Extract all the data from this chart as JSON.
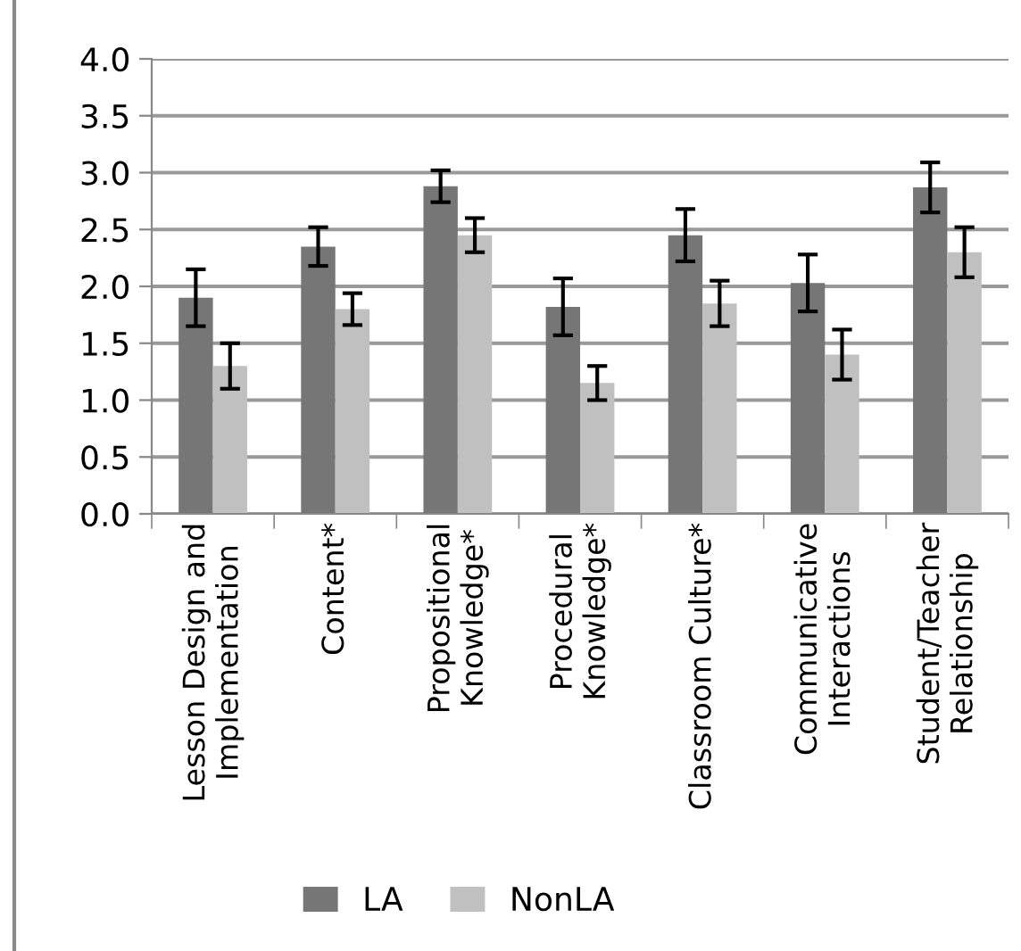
{
  "chart_data": {
    "type": "bar",
    "categories": [
      "Lesson Design and\nImplementation",
      "Content*",
      "Propositional\nKnowledge*",
      "Procedural\nKnowledge*",
      "Classroom Culture*",
      "Communicative\nInteractions",
      "Student/Teacher\nRelationship"
    ],
    "series": [
      {
        "name": "LA",
        "color": "#767676",
        "values": [
          1.9,
          2.35,
          2.88,
          1.82,
          2.45,
          2.03,
          2.87
        ],
        "errors": [
          0.25,
          0.17,
          0.14,
          0.25,
          0.23,
          0.25,
          0.22
        ]
      },
      {
        "name": "NonLA",
        "color": "#c0c0c0",
        "values": [
          1.3,
          1.8,
          2.45,
          1.15,
          1.85,
          1.4,
          2.3
        ],
        "errors": [
          0.2,
          0.14,
          0.15,
          0.15,
          0.2,
          0.22,
          0.22
        ]
      }
    ],
    "ylim": [
      0,
      4
    ],
    "yticks": [
      {
        "value": 0,
        "label": "0.0"
      },
      {
        "value": 0.5,
        "label": "0.5"
      },
      {
        "value": 1,
        "label": "1.0"
      },
      {
        "value": 1.5,
        "label": "1.5"
      },
      {
        "value": 2,
        "label": "2.0"
      },
      {
        "value": 2.5,
        "label": "2.5"
      },
      {
        "value": 3,
        "label": "3.0"
      },
      {
        "value": 3.5,
        "label": "3.5"
      },
      {
        "value": 4,
        "label": "4.0"
      }
    ],
    "grid": "y",
    "legend": "bottom"
  }
}
